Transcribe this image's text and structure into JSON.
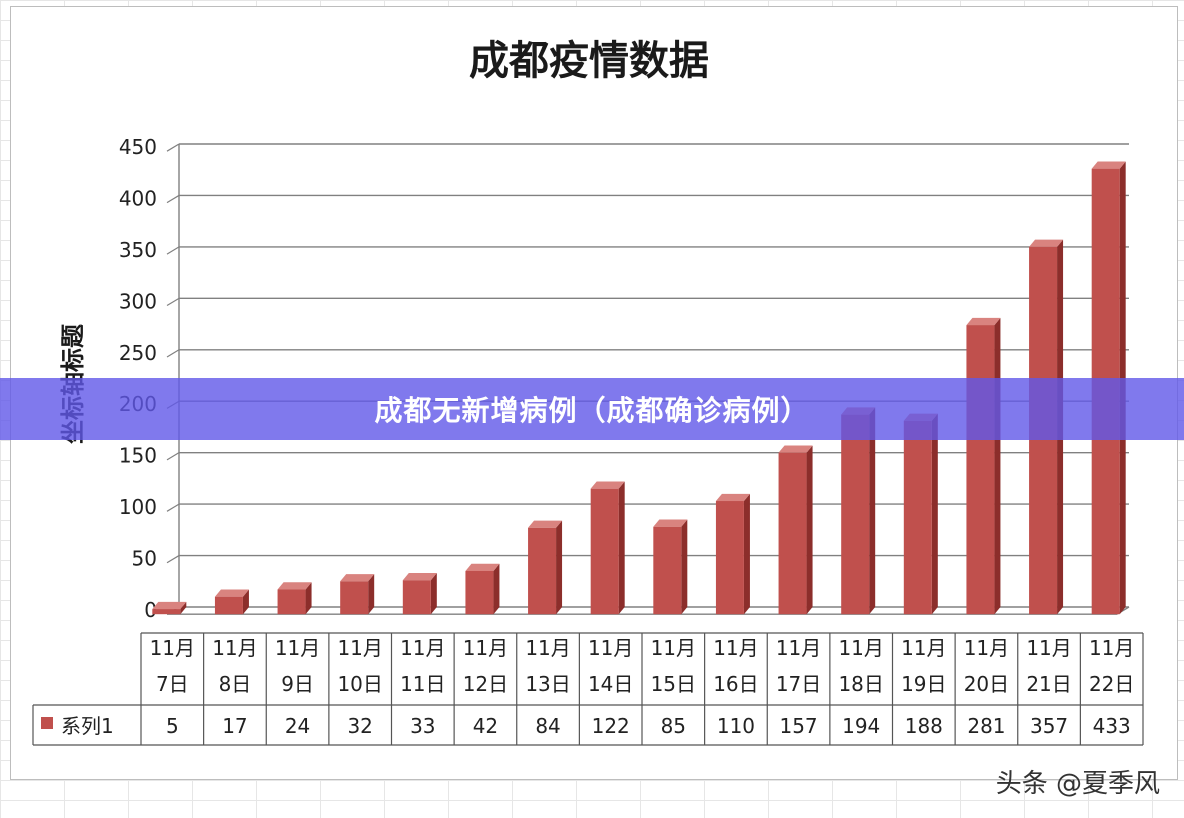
{
  "colors": {
    "bar_front": "#c0504d",
    "bar_side": "#8c2e2b",
    "bar_top": "#d9837f",
    "banner": "#6058e8",
    "grid": "#808080"
  },
  "banner": {
    "text": "成都无新增病例（成都确诊病例）"
  },
  "watermark": {
    "text": "头条 @夏季风"
  },
  "chart_data": {
    "type": "bar",
    "title": "成都疫情数据",
    "xlabel": "",
    "ylabel": "坐标轴标题",
    "ylim": [
      0,
      450
    ],
    "y_ticks": [
      "0",
      "50",
      "100",
      "150",
      "200",
      "250",
      "300",
      "350",
      "400",
      "450"
    ],
    "grid": true,
    "legend": "data-table",
    "categories": [
      [
        "11月",
        "7日"
      ],
      [
        "11月",
        "8日"
      ],
      [
        "11月",
        "9日"
      ],
      [
        "11月",
        "10日"
      ],
      [
        "11月",
        "11日"
      ],
      [
        "11月",
        "12日"
      ],
      [
        "11月",
        "13日"
      ],
      [
        "11月",
        "14日"
      ],
      [
        "11月",
        "15日"
      ],
      [
        "11月",
        "16日"
      ],
      [
        "11月",
        "17日"
      ],
      [
        "11月",
        "18日"
      ],
      [
        "11月",
        "19日"
      ],
      [
        "11月",
        "20日"
      ],
      [
        "11月",
        "21日"
      ],
      [
        "11月",
        "22日"
      ]
    ],
    "series": [
      {
        "name": "系列1",
        "values": [
          5,
          17,
          24,
          32,
          33,
          42,
          84,
          122,
          85,
          110,
          157,
          194,
          188,
          281,
          357,
          433
        ]
      }
    ]
  }
}
